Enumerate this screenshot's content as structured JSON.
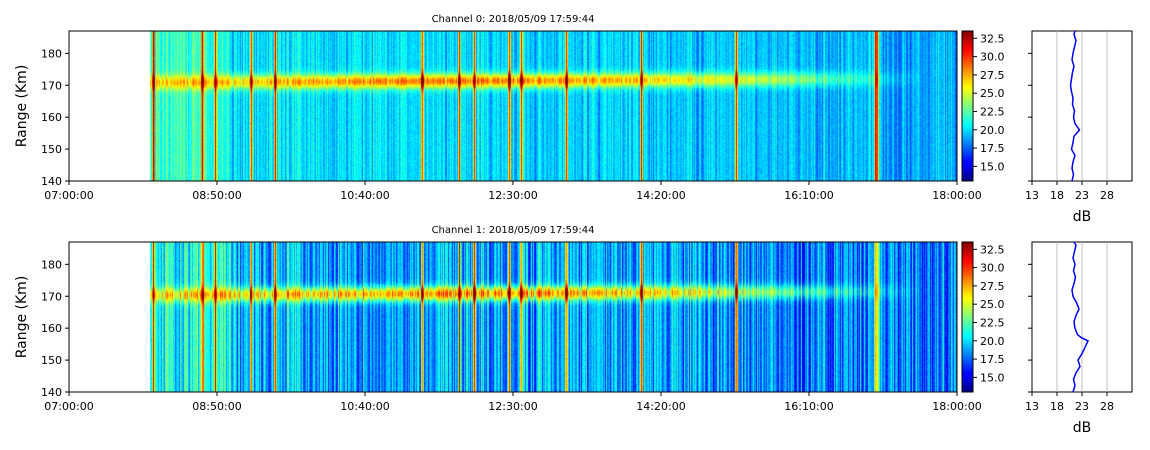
{
  "chart_data": [
    {
      "type": "heatmap",
      "title": "Channel 0: 2018/05/09 17:59:44",
      "ylabel": "Range (Km)",
      "xlabel": "",
      "x_tick_labels": [
        "07:00:00",
        "08:50:00",
        "10:40:00",
        "12:30:00",
        "14:20:00",
        "16:10:00",
        "18:00:00"
      ],
      "x_range": [
        "07:00:00",
        "18:00:00"
      ],
      "data_start": "08:00:00",
      "y_ticks": [
        140,
        150,
        160,
        170,
        180
      ],
      "ylim": [
        140,
        187
      ],
      "colorbar": {
        "ticks": [
          15.0,
          17.5,
          20.0,
          22.5,
          25.0,
          27.5,
          30.0,
          32.5
        ],
        "range": [
          13,
          33.5
        ],
        "colormap": "jet"
      },
      "features": {
        "echo_band_center_km": 171,
        "background_db": 20.5,
        "peak_db": 31
      },
      "profile": {
        "xlabel": "dB",
        "x_ticks": [
          13,
          18,
          23,
          28
        ],
        "xlim": [
          13,
          33
        ],
        "ylim": [
          140,
          187
        ],
        "range_km": [
          140,
          142,
          144,
          146,
          148,
          150,
          152,
          154,
          156,
          158,
          160,
          162,
          164,
          166,
          168,
          170,
          172,
          174,
          176,
          178,
          180,
          182,
          184,
          186,
          187
        ],
        "db": [
          21.0,
          21.3,
          21.0,
          21.2,
          21.6,
          20.9,
          21.2,
          21.4,
          22.5,
          21.6,
          21.3,
          21.5,
          21.1,
          21.2,
          20.9,
          20.7,
          20.9,
          21.1,
          21.4,
          21.0,
          21.2,
          21.5,
          21.8,
          21.4,
          21.6
        ],
        "color": "#0000ff"
      }
    },
    {
      "type": "heatmap",
      "title": "Channel 1: 2018/05/09 17:59:44",
      "ylabel": "Range (Km)",
      "xlabel": "",
      "x_tick_labels": [
        "07:00:00",
        "08:50:00",
        "10:40:00",
        "12:30:00",
        "14:20:00",
        "16:10:00",
        "18:00:00"
      ],
      "x_range": [
        "07:00:00",
        "18:00:00"
      ],
      "data_start": "08:00:00",
      "y_ticks": [
        140,
        150,
        160,
        170,
        180
      ],
      "ylim": [
        140,
        187
      ],
      "colorbar": {
        "ticks": [
          15.0,
          17.5,
          20.0,
          22.5,
          25.0,
          27.5,
          30.0,
          32.5
        ],
        "range": [
          13,
          33.5
        ],
        "colormap": "jet"
      },
      "features": {
        "echo_band_center_km": 170.5,
        "background_db": 19.5,
        "peak_db": 30.5
      },
      "profile": {
        "xlabel": "dB",
        "x_ticks": [
          13,
          18,
          23,
          28
        ],
        "xlim": [
          13,
          33
        ],
        "ylim": [
          140,
          187
        ],
        "range_km": [
          140,
          142,
          144,
          146,
          148,
          150,
          152,
          154,
          156,
          157,
          158,
          160,
          162,
          164,
          166,
          168,
          170,
          172,
          174,
          176,
          178,
          180,
          182,
          184,
          186,
          187
        ],
        "db": [
          21.2,
          21.6,
          21.3,
          21.8,
          22.6,
          22.2,
          23.0,
          23.6,
          24.2,
          22.9,
          22.1,
          21.6,
          21.4,
          21.8,
          22.4,
          21.9,
          21.2,
          21.0,
          21.4,
          21.7,
          21.3,
          21.6,
          21.2,
          21.5,
          21.8,
          21.4
        ],
        "color": "#0000ff"
      }
    }
  ]
}
